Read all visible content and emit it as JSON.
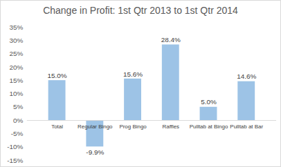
{
  "chart_data": {
    "type": "bar",
    "title": "Change in Profit: 1st Qtr 2013 to 1st Qtr 2014",
    "categories": [
      "Total",
      "Regular Bingo",
      "Prog Bingo",
      "Raffles",
      "Pulltab at Bingo",
      "Pulltab at Bar"
    ],
    "values": [
      15.0,
      -9.9,
      15.6,
      28.4,
      5.0,
      14.6
    ],
    "value_labels": [
      "15.0%",
      "-9.9%",
      "15.6%",
      "28.4%",
      "5.0%",
      "14.6%"
    ],
    "color": "#9dc3e6",
    "ylim": [
      -15,
      35
    ],
    "yticks": [
      {
        "value": -15,
        "label": "-15%"
      },
      {
        "value": -10,
        "label": "-10%"
      },
      {
        "value": -5,
        "label": "-5%"
      },
      {
        "value": 0,
        "label": "0%"
      },
      {
        "value": 5,
        "label": "5%"
      },
      {
        "value": 10,
        "label": "10%"
      },
      {
        "value": 15,
        "label": "15%"
      },
      {
        "value": 20,
        "label": "20%"
      },
      {
        "value": 25,
        "label": "25%"
      },
      {
        "value": 30,
        "label": "30%"
      },
      {
        "value": 35,
        "label": "35%"
      }
    ],
    "grid": false,
    "data_labels": true
  }
}
